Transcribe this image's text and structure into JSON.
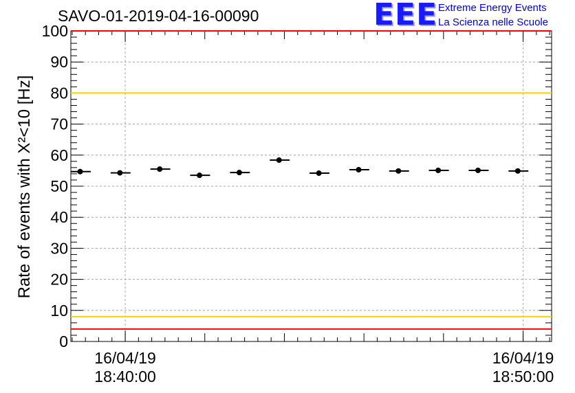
{
  "chart_data": {
    "type": "scatter",
    "title": "SAVO-01-2019-04-16-00090",
    "ylabel": "Rate of events with X²<10 [Hz]",
    "xlabel": "",
    "ylim": [
      0,
      100
    ],
    "yticks": [
      0,
      10,
      20,
      30,
      40,
      50,
      60,
      70,
      80,
      90,
      100
    ],
    "xlim": [
      "16/04/19 18:38:38",
      "16/04/19 18:50:43"
    ],
    "xticks": [
      {
        "date": "16/04/19",
        "time": "18:40:00",
        "value": "16/04/19 18:40:00"
      },
      {
        "date": "16/04/19",
        "time": "18:50:00",
        "value": "16/04/19 18:50:00"
      }
    ],
    "grid": true,
    "reference_lines": [
      {
        "y": 100,
        "color": "#ff0000"
      },
      {
        "y": 80,
        "color": "#ffcc00"
      },
      {
        "y": 8,
        "color": "#ffcc00"
      },
      {
        "y": 4,
        "color": "#ff0000"
      }
    ],
    "series": [
      {
        "points": [
          {
            "x": "18:38:52",
            "y": 54.7,
            "x_start": "18:38:38",
            "x_end": "18:39:08"
          },
          {
            "x": "18:39:52",
            "y": 54.3,
            "x_start": "18:39:38",
            "x_end": "18:40:08"
          },
          {
            "x": "18:40:52",
            "y": 55.5,
            "x_start": "18:40:38",
            "x_end": "18:41:08"
          },
          {
            "x": "18:41:52",
            "y": 53.5,
            "x_start": "18:41:38",
            "x_end": "18:42:08"
          },
          {
            "x": "18:42:52",
            "y": 54.4,
            "x_start": "18:42:38",
            "x_end": "18:43:08"
          },
          {
            "x": "18:43:52",
            "y": 58.4,
            "x_start": "18:43:38",
            "x_end": "18:44:08"
          },
          {
            "x": "18:44:52",
            "y": 54.2,
            "x_start": "18:44:38",
            "x_end": "18:45:08"
          },
          {
            "x": "18:45:52",
            "y": 55.3,
            "x_start": "18:45:38",
            "x_end": "18:46:08"
          },
          {
            "x": "18:46:52",
            "y": 54.9,
            "x_start": "18:46:38",
            "x_end": "18:47:08"
          },
          {
            "x": "18:47:52",
            "y": 55.1,
            "x_start": "18:47:38",
            "x_end": "18:48:08"
          },
          {
            "x": "18:48:52",
            "y": 55.1,
            "x_start": "18:48:38",
            "x_end": "18:49:08"
          },
          {
            "x": "18:49:52",
            "y": 54.9,
            "x_start": "18:49:38",
            "x_end": "18:50:08"
          }
        ],
        "color": "#000000"
      }
    ]
  },
  "logo": {
    "mark": "EEE",
    "line1": "Extreme Energy Events",
    "line2": "La Scienza nelle Scuole",
    "color": "#0000dd"
  }
}
